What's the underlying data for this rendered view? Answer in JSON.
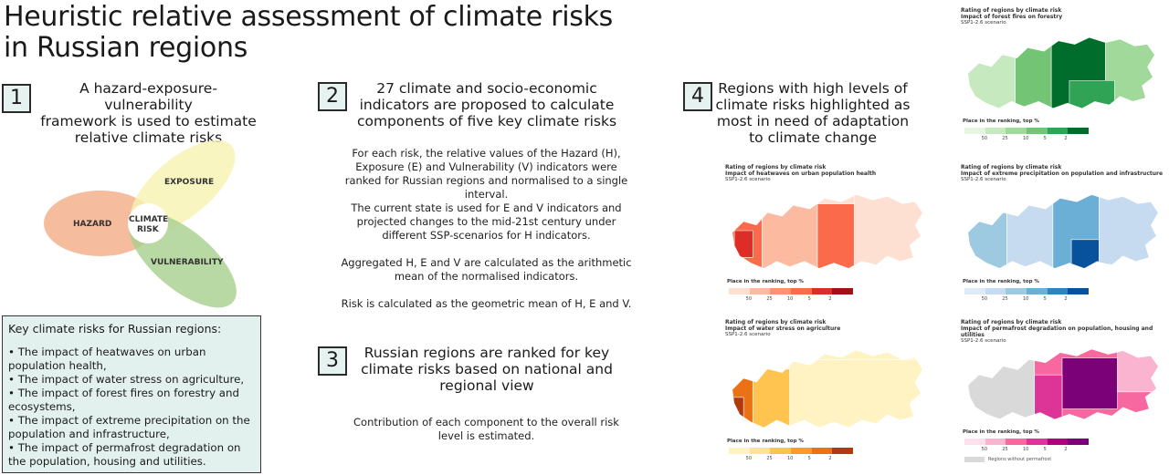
{
  "title_line1": "Heuristic relative assessment of climate risks",
  "title_line2": "in Russian regions",
  "steps": [
    {
      "num": "1",
      "lines": [
        "A hazard-exposure-vulnerability",
        "framework is used to estimate",
        "relative climate risks"
      ]
    },
    {
      "num": "2",
      "lines": [
        "27 climate and socio-economic",
        "indicators are proposed to calculate",
        "components of five key climate risks"
      ]
    },
    {
      "num": "3",
      "lines": [
        "Russian regions are ranked for key",
        "climate risks based on national and",
        "regional view"
      ]
    },
    {
      "num": "4",
      "lines": [
        "Regions with high levels of",
        "climate risks highlighted as",
        "most in need of adaptation",
        "to climate change"
      ]
    }
  ],
  "venn": {
    "hazard": "HAZARD",
    "exposure": "EXPOSURE",
    "vulnerability": "VULNERABILITY",
    "center1": "CLIMATE",
    "center2": "RISK"
  },
  "step2_body": [
    "For each risk, the relative values of the Hazard (H),",
    "Exposure (E) and Vulnerability (V) indicators were",
    "ranked for Russian regions and normalised to a single",
    "interval.",
    "The current state is used for E and V indicators and",
    "projected changes to the mid-21st century under",
    "different SSP-scenarios for H indicators.",
    "",
    "Aggregated H, E and V are calculated as the arithmetic",
    "mean of the normalised indicators.",
    "",
    "Risk is calculated as the geometric mean of H, E and V."
  ],
  "step3_body": [
    "Contribution of each component to the overall risk",
    "level is estimated."
  ],
  "keybox": {
    "title": "Key climate risks for Russian regions:",
    "items": [
      "•    The impact of heatwaves on urban population health,",
      "•    The impact of water stress on agriculture,",
      "•    The impact of forest fires on forestry and ecosystems,",
      "•    The impact of extreme precipitation on the population and infrastructure,",
      "•    The impact of permafrost degradation on the population, housing and utilities."
    ]
  },
  "maps": {
    "common_title": "Rating of regions by climate risk",
    "scenario": "SSP1-2.6 scenario",
    "rank_label": "Place in the ranking, top %",
    "ticks": [
      "50",
      "25",
      "10",
      "5",
      "2"
    ],
    "forest": {
      "subtitle": "Impact of forest fires on forestry",
      "colors": [
        "#e5f5e0",
        "#c7e9c0",
        "#a1d99b",
        "#74c476",
        "#31a354",
        "#006d2c"
      ]
    },
    "heat": {
      "subtitle": "Impact of heatwaves on urban population health",
      "colors": [
        "#fde0d2",
        "#fcbba1",
        "#fc9272",
        "#fb6a4a",
        "#de2d26",
        "#a50f15"
      ]
    },
    "precip": {
      "subtitle": "Impact of extreme precipitation on population and infrastructure",
      "colors": [
        "#deebf7",
        "#c6dbef",
        "#9ecae1",
        "#6baed6",
        "#3182bd",
        "#08519c"
      ]
    },
    "water": {
      "subtitle": "Impact of water stress on agriculture",
      "colors": [
        "#fff3c4",
        "#fee391",
        "#fec44f",
        "#fe9929",
        "#ec7014",
        "#b03a0e"
      ]
    },
    "permafrost": {
      "subtitle": "Impact of permafrost degradation on population, housing and utilities",
      "colors": [
        "#fde0ec",
        "#fbb4d0",
        "#f768a1",
        "#dd3497",
        "#ae017e",
        "#7a0177"
      ],
      "nodata": "Regions without permafrost"
    }
  }
}
